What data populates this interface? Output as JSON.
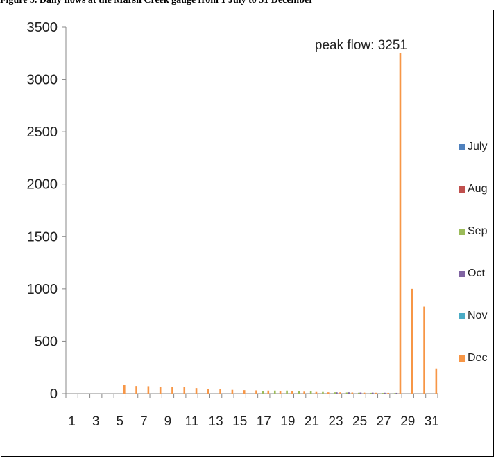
{
  "caption": "Figure 3. Daily flows at the Marsh Creek gauge from 1 July to 31 December",
  "chart_data": {
    "type": "bar",
    "ylim": [
      0,
      3500
    ],
    "yticks": [
      0,
      500,
      1000,
      1500,
      2000,
      2500,
      3000,
      3500
    ],
    "x_tick_labels": [
      "1",
      "3",
      "5",
      "7",
      "9",
      "11",
      "13",
      "15",
      "17",
      "19",
      "21",
      "23",
      "25",
      "27",
      "29",
      "31"
    ],
    "days": [
      1,
      2,
      3,
      4,
      5,
      6,
      7,
      8,
      9,
      10,
      11,
      12,
      13,
      14,
      15,
      16,
      17,
      18,
      19,
      20,
      21,
      22,
      23,
      24,
      25,
      26,
      27,
      28,
      29,
      30,
      31
    ],
    "annotation": "peak flow: 3251",
    "series": [
      {
        "name": "July",
        "color": "#4f81bd",
        "values": [
          0,
          0,
          0,
          0,
          0,
          0,
          0,
          0,
          0,
          0,
          0,
          0,
          0,
          0,
          0,
          0,
          0,
          0,
          0,
          0,
          0,
          0,
          0,
          0,
          0,
          0,
          0,
          0,
          0,
          0,
          0
        ]
      },
      {
        "name": "Aug",
        "color": "#c0504d",
        "values": [
          0,
          0,
          0,
          0,
          0,
          0,
          0,
          0,
          0,
          0,
          0,
          0,
          0,
          0,
          0,
          0,
          0,
          0,
          0,
          0,
          0,
          0,
          0,
          0,
          0,
          0,
          0,
          0,
          0,
          0,
          0
        ]
      },
      {
        "name": "Sep",
        "color": "#9bbb59",
        "values": [
          0,
          0,
          0,
          0,
          0,
          0,
          0,
          0,
          0,
          0,
          0,
          0,
          0,
          0,
          0,
          0,
          20,
          28,
          28,
          25,
          20,
          15,
          12,
          10,
          8,
          7,
          6,
          5,
          0,
          0,
          0
        ]
      },
      {
        "name": "Oct",
        "color": "#8064a2",
        "values": [
          0,
          0,
          0,
          0,
          0,
          0,
          0,
          0,
          0,
          0,
          0,
          0,
          0,
          0,
          0,
          0,
          0,
          0,
          0,
          0,
          0,
          0,
          12,
          12,
          10,
          9,
          8,
          7,
          0,
          0,
          0
        ]
      },
      {
        "name": "Nov",
        "color": "#4bacc6",
        "values": [
          0,
          0,
          0,
          0,
          0,
          0,
          0,
          0,
          0,
          0,
          0,
          0,
          0,
          0,
          0,
          0,
          0,
          0,
          0,
          0,
          0,
          0,
          0,
          0,
          0,
          0,
          0,
          0,
          0,
          0,
          0
        ]
      },
      {
        "name": "Dec",
        "color": "#f79646",
        "values": [
          0,
          0,
          0,
          0,
          80,
          72,
          70,
          65,
          62,
          62,
          52,
          45,
          40,
          35,
          32,
          30,
          28,
          25,
          20,
          18,
          15,
          12,
          12,
          10,
          9,
          8,
          7,
          3251,
          1000,
          830,
          240
        ]
      }
    ]
  }
}
